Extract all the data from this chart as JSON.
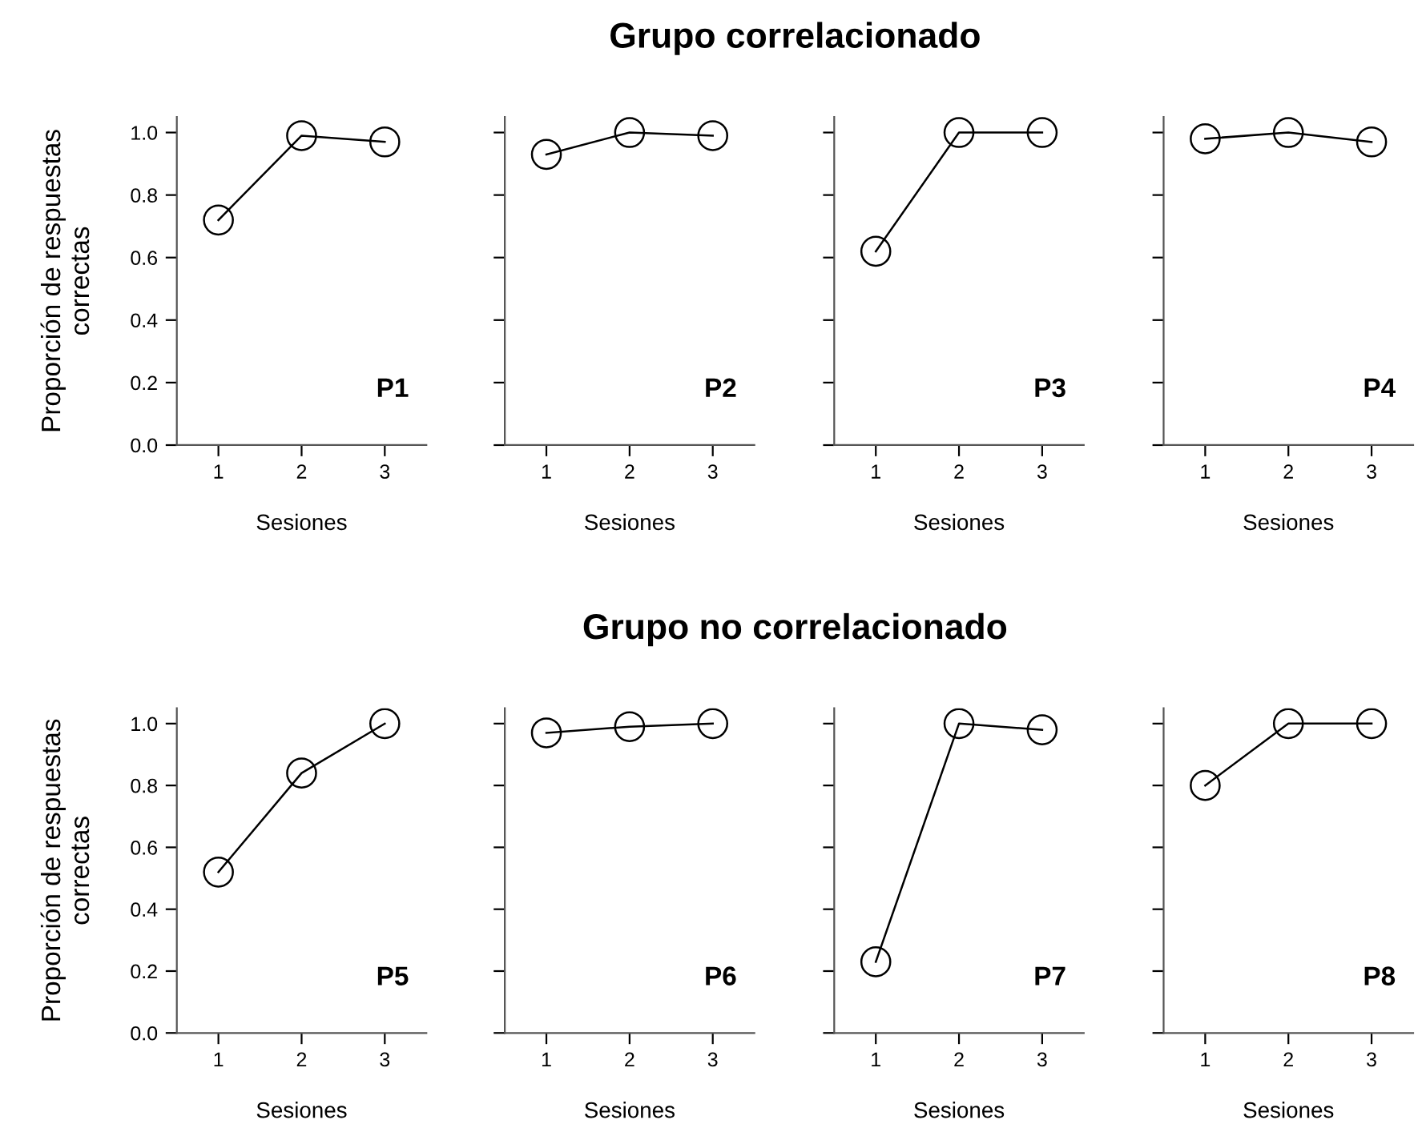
{
  "chart_data": [
    {
      "type": "line",
      "ylabel": "Proporción de respuestas\ncorrectas",
      "xlabel": "Sesiones",
      "x": [
        1,
        2,
        3
      ],
      "series": [
        {
          "color": "#000000",
          "values": [
            0.72,
            0.99,
            0.97
          ]
        }
      ],
      "xlim": [
        0.5,
        3.5
      ],
      "xticks": [
        1,
        2,
        3
      ],
      "ylim": [
        0,
        1.05
      ],
      "yticks": [
        {
          "value": 0,
          "label": "0.0"
        },
        0.2,
        0.4,
        0.6,
        0.8,
        {
          "value": 1,
          "label": "1.0"
        }
      ],
      "marker": "circle",
      "grid": false,
      "legend": false,
      "annotations": [
        "P1"
      ]
    },
    {
      "type": "line",
      "title": "Grupo correlacionado",
      "xlabel": "Sesiones",
      "x": [
        1,
        2,
        3
      ],
      "series": [
        {
          "color": "#000000",
          "values": [
            0.93,
            1.0,
            0.99
          ]
        }
      ],
      "xlim": [
        0.5,
        3.5
      ],
      "xticks": [
        1,
        2,
        3
      ],
      "ylim": [
        0,
        1.05
      ],
      "yticks": [
        {
          "value": 0,
          "label": null
        },
        {
          "value": 0.2,
          "label": null
        },
        {
          "value": 0.4,
          "label": null
        },
        {
          "value": 0.6,
          "label": null
        },
        {
          "value": 0.8,
          "label": null
        },
        {
          "value": 1,
          "label": null
        }
      ],
      "tick_labels": "x",
      "marker": "circle",
      "grid": false,
      "legend": false,
      "annotations": [
        "P2"
      ]
    },
    {
      "type": "line",
      "xlabel": "Sesiones",
      "x": [
        1,
        2,
        3
      ],
      "series": [
        {
          "color": "#000000",
          "values": [
            0.62,
            1.0,
            1.0
          ]
        }
      ],
      "xlim": [
        0.5,
        3.5
      ],
      "xticks": [
        1,
        2,
        3
      ],
      "ylim": [
        0,
        1.05
      ],
      "yticks": [
        {
          "value": 0,
          "label": null
        },
        {
          "value": 0.2,
          "label": null
        },
        {
          "value": 0.4,
          "label": null
        },
        {
          "value": 0.6,
          "label": null
        },
        {
          "value": 0.8,
          "label": null
        },
        {
          "value": 1,
          "label": null
        }
      ],
      "tick_labels": "x",
      "marker": "circle",
      "grid": false,
      "legend": false,
      "annotations": [
        "P3"
      ]
    },
    {
      "type": "line",
      "xlabel": "Sesiones",
      "x": [
        1,
        2,
        3
      ],
      "series": [
        {
          "color": "#000000",
          "values": [
            0.98,
            1.0,
            0.97
          ]
        }
      ],
      "xlim": [
        0.5,
        3.5
      ],
      "xticks": [
        1,
        2,
        3
      ],
      "ylim": [
        0,
        1.05
      ],
      "yticks": [
        {
          "value": 0,
          "label": null
        },
        {
          "value": 0.2,
          "label": null
        },
        {
          "value": 0.4,
          "label": null
        },
        {
          "value": 0.6,
          "label": null
        },
        {
          "value": 0.8,
          "label": null
        },
        {
          "value": 1,
          "label": null
        }
      ],
      "tick_labels": "x",
      "marker": "circle",
      "grid": false,
      "legend": false,
      "annotations": [
        "P4"
      ]
    },
    {
      "type": "line",
      "ylabel": "Proporción de respuestas\ncorrectas",
      "xlabel": "Sesiones",
      "x": [
        1,
        2,
        3
      ],
      "series": [
        {
          "color": "#000000",
          "values": [
            0.52,
            0.84,
            1.0
          ]
        }
      ],
      "xlim": [
        0.5,
        3.5
      ],
      "xticks": [
        1,
        2,
        3
      ],
      "ylim": [
        0,
        1.05
      ],
      "yticks": [
        {
          "value": 0,
          "label": "0.0"
        },
        0.2,
        0.4,
        0.6,
        0.8,
        {
          "value": 1,
          "label": "1.0"
        }
      ],
      "marker": "circle",
      "grid": false,
      "legend": false,
      "annotations": [
        "P5"
      ]
    },
    {
      "type": "line",
      "title": "Grupo no correlacionado",
      "xlabel": "Sesiones",
      "x": [
        1,
        2,
        3
      ],
      "series": [
        {
          "color": "#000000",
          "values": [
            0.97,
            0.99,
            1.0
          ]
        }
      ],
      "xlim": [
        0.5,
        3.5
      ],
      "xticks": [
        1,
        2,
        3
      ],
      "ylim": [
        0,
        1.05
      ],
      "yticks": [
        {
          "value": 0,
          "label": null
        },
        {
          "value": 0.2,
          "label": null
        },
        {
          "value": 0.4,
          "label": null
        },
        {
          "value": 0.6,
          "label": null
        },
        {
          "value": 0.8,
          "label": null
        },
        {
          "value": 1,
          "label": null
        }
      ],
      "tick_labels": "x",
      "marker": "circle",
      "grid": false,
      "legend": false,
      "annotations": [
        "P6"
      ]
    },
    {
      "type": "line",
      "xlabel": "Sesiones",
      "x": [
        1,
        2,
        3
      ],
      "series": [
        {
          "color": "#000000",
          "values": [
            0.23,
            1.0,
            0.98
          ]
        }
      ],
      "xlim": [
        0.5,
        3.5
      ],
      "xticks": [
        1,
        2,
        3
      ],
      "ylim": [
        0,
        1.05
      ],
      "yticks": [
        {
          "value": 0,
          "label": null
        },
        {
          "value": 0.2,
          "label": null
        },
        {
          "value": 0.4,
          "label": null
        },
        {
          "value": 0.6,
          "label": null
        },
        {
          "value": 0.8,
          "label": null
        },
        {
          "value": 1,
          "label": null
        }
      ],
      "tick_labels": "x",
      "marker": "circle",
      "grid": false,
      "legend": false,
      "annotations": [
        "P7"
      ]
    },
    {
      "type": "line",
      "xlabel": "Sesiones",
      "x": [
        1,
        2,
        3
      ],
      "series": [
        {
          "color": "#000000",
          "values": [
            0.8,
            1.0,
            1.0
          ]
        }
      ],
      "xlim": [
        0.5,
        3.5
      ],
      "xticks": [
        1,
        2,
        3
      ],
      "ylim": [
        0,
        1.05
      ],
      "yticks": [
        {
          "value": 0,
          "label": null
        },
        {
          "value": 0.2,
          "label": null
        },
        {
          "value": 0.4,
          "label": null
        },
        {
          "value": 0.6,
          "label": null
        },
        {
          "value": 0.8,
          "label": null
        },
        {
          "value": 1,
          "label": null
        }
      ],
      "tick_labels": "x",
      "marker": "circle",
      "grid": false,
      "legend": false,
      "annotations": [
        "P8"
      ]
    }
  ]
}
